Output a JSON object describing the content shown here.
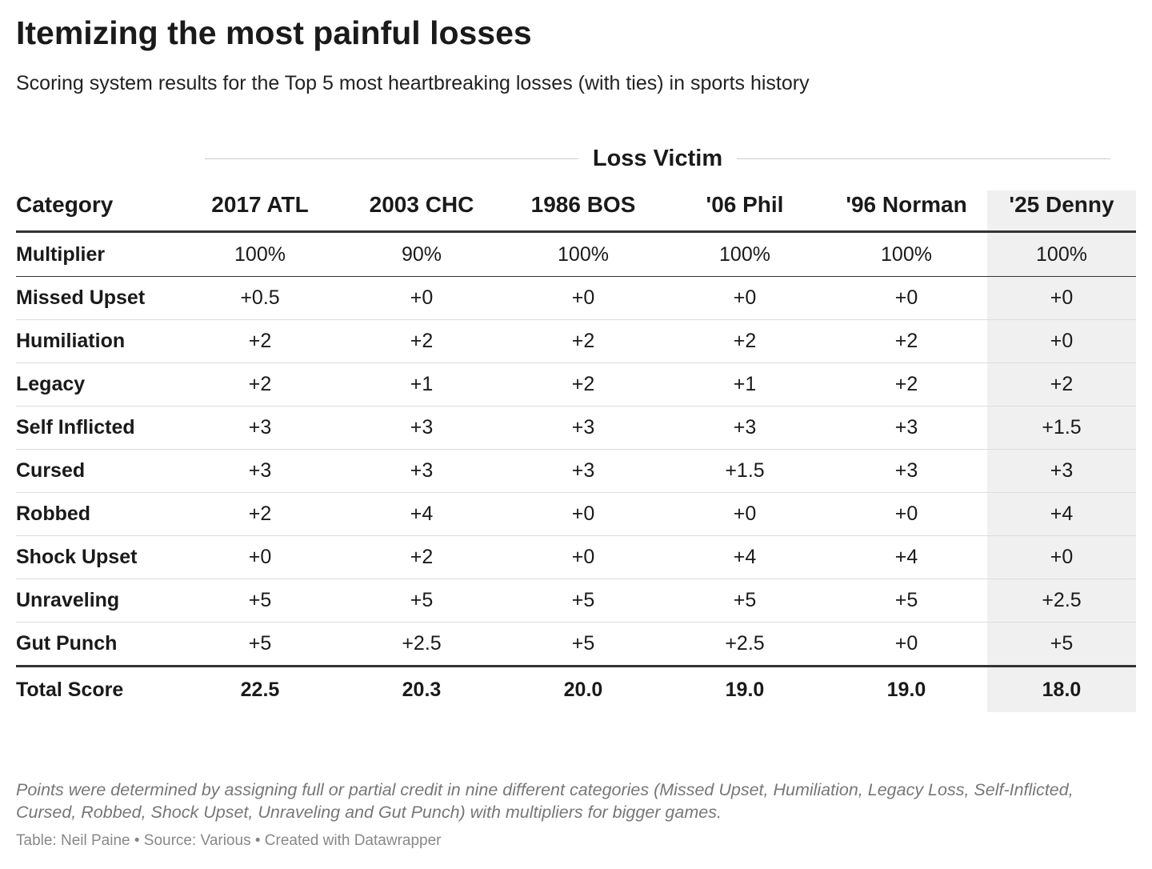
{
  "header": {
    "title": "Itemizing the most painful losses",
    "subtitle": "Scoring system results for the Top 5 most heartbreaking losses (with ties) in sports history"
  },
  "table": {
    "group_header": "Loss Victim",
    "columns": [
      "Category",
      "2017 ATL",
      "2003 CHC",
      "1986 BOS",
      "'06 Phil",
      "'96 Norman",
      "'25 Denny"
    ],
    "rows": [
      [
        "Multiplier",
        "100%",
        "90%",
        "100%",
        "100%",
        "100%",
        "100%"
      ],
      [
        "Missed Upset",
        "+0.5",
        "+0",
        "+0",
        "+0",
        "+0",
        "+0"
      ],
      [
        "Humiliation",
        "+2",
        "+2",
        "+2",
        "+2",
        "+2",
        "+0"
      ],
      [
        "Legacy",
        "+2",
        "+1",
        "+2",
        "+1",
        "+2",
        "+2"
      ],
      [
        "Self Inflicted",
        "+3",
        "+3",
        "+3",
        "+3",
        "+3",
        "+1.5"
      ],
      [
        "Cursed",
        "+3",
        "+3",
        "+3",
        "+1.5",
        "+3",
        "+3"
      ],
      [
        "Robbed",
        "+2",
        "+4",
        "+0",
        "+0",
        "+0",
        "+4"
      ],
      [
        "Shock Upset",
        "+0",
        "+2",
        "+0",
        "+4",
        "+4",
        "+0"
      ],
      [
        "Unraveling",
        "+5",
        "+5",
        "+5",
        "+5",
        "+5",
        "+2.5"
      ],
      [
        "Gut Punch",
        "+5",
        "+2.5",
        "+5",
        "+2.5",
        "+0",
        "+5"
      ]
    ],
    "total": [
      "Total Score",
      "22.5",
      "20.3",
      "20.0",
      "19.0",
      "19.0",
      "18.0"
    ]
  },
  "notes": "Points were determined by assigning full or partial credit in nine different categories (Missed Upset, Humiliation, Legacy Loss, Self-Inflicted, Cursed, Robbed, Shock Upset, Unraveling and Gut Punch) with multipliers for bigger games.",
  "byline": "Table: Neil Paine • Source: Various • Created with Datawrapper"
}
